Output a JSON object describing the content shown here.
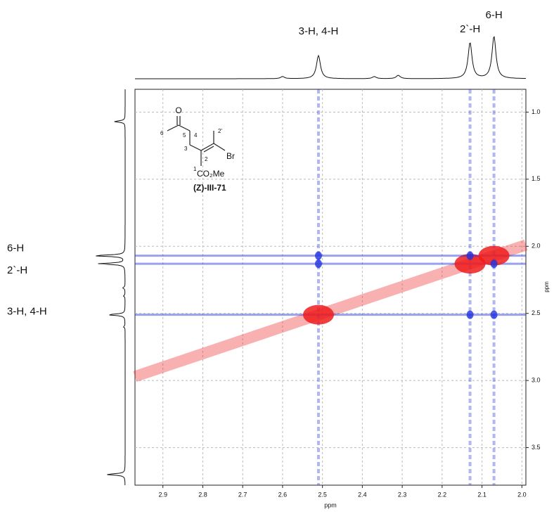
{
  "chart_data": {
    "type": "nmr2d",
    "x_label": "ppm",
    "y_label": "ppm",
    "xlim": [
      2.97,
      1.99
    ],
    "ylim": [
      0.83,
      3.78
    ],
    "xticks": [
      2.9,
      2.8,
      2.7,
      2.6,
      2.5,
      2.4,
      2.3,
      2.2,
      2.1,
      {
        "value": 2,
        "label": "2.0"
      }
    ],
    "yticks": [
      {
        "value": 1,
        "label": "1.0"
      },
      1.5,
      {
        "value": 2,
        "label": "2.0"
      },
      2.5,
      {
        "value": 3,
        "label": "3.0"
      },
      3.5
    ],
    "grid": true,
    "peaks": [
      {
        "label": "3-H, 4-H",
        "shift": 2.51,
        "height": 0.55
      },
      {
        "label": "2`-H",
        "shift": 2.13,
        "height": 0.85
      },
      {
        "label": "6-H",
        "shift": 2.07,
        "height": 1.0
      }
    ],
    "minor_peaks": [
      {
        "shift": 1.07,
        "height": 0.35
      },
      {
        "shift": 3.7,
        "height": 0.6
      },
      {
        "shift": 2.31,
        "height": 0.08
      },
      {
        "shift": 2.37,
        "height": 0.05
      },
      {
        "shift": 2.6,
        "height": 0.05
      }
    ],
    "diagonal_color": "#ee1c1c",
    "cross_color": "#2233dd",
    "structure": {
      "atoms": [
        "6",
        "5",
        "4",
        "3",
        "2",
        "1",
        "2'"
      ],
      "substituent": "Br",
      "ester": "CO₂Me",
      "oxygen": "O",
      "compound": "(Z)-III-71"
    }
  }
}
